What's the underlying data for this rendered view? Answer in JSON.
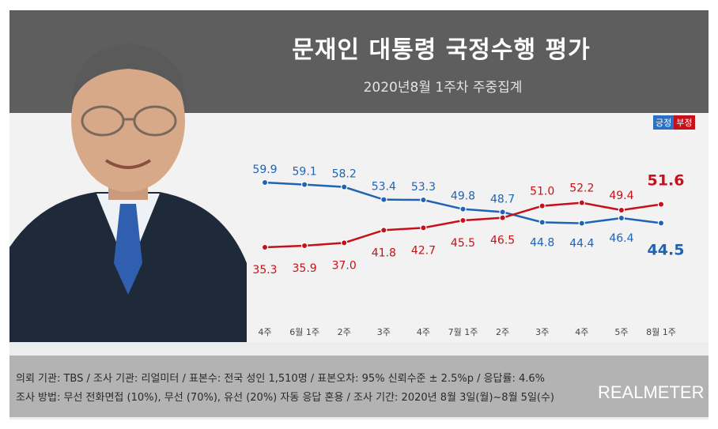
{
  "header": {
    "title": "문재인 대통령 국정수행 평가",
    "subtitle": "2020년8월 1주차 주중집계"
  },
  "legend": {
    "positive": "긍정",
    "negative": "부정"
  },
  "footer": {
    "line1": "의뢰 기관: TBS / 조사 기관: 리얼미터 / 표본수: 전국 성인 1,510명 / 표본오차: 95% 신뢰수준 ± 2.5%p / 응답률: 4.6%",
    "line2": "조사 방법: 무선 전화면접 (10%), 무선 (70%), 유선 (20%) 자동 응답 혼용 / 조사 기간: 2020년 8월 3일(월)~8월 5일(수)",
    "brand": "REALMETER"
  },
  "colors": {
    "positive": "#1f63b5",
    "negative": "#c8101a",
    "header_bg": "#5e5e5e"
  },
  "chart_data": {
    "type": "line",
    "categories": [
      "4주",
      "6월 1주",
      "2주",
      "3주",
      "4주",
      "7월 1주",
      "2주",
      "3주",
      "4주",
      "5주",
      "8월 1주"
    ],
    "series": [
      {
        "name": "긍정",
        "color": "#1f63b5",
        "values": [
          59.9,
          59.1,
          58.2,
          53.4,
          53.3,
          49.8,
          48.7,
          44.8,
          44.4,
          46.4,
          44.5
        ]
      },
      {
        "name": "부정",
        "color": "#c8101a",
        "values": [
          35.3,
          35.9,
          37.0,
          41.8,
          42.7,
          45.5,
          46.5,
          51.0,
          52.2,
          49.4,
          51.6
        ]
      }
    ],
    "labels": {
      "positive": [
        "59.9",
        "59.1",
        "58.2",
        "53.4",
        "53.3",
        "49.8",
        "48.7",
        "44.8",
        "44.4",
        "46.4",
        "44.5"
      ],
      "negative": [
        "35.3",
        "35.9",
        "37.0",
        "41.8",
        "42.7",
        "45.5",
        "46.5",
        "51.0",
        "52.2",
        "49.4",
        "51.6"
      ]
    },
    "ylim": [
      30,
      65
    ],
    "grid": false
  }
}
